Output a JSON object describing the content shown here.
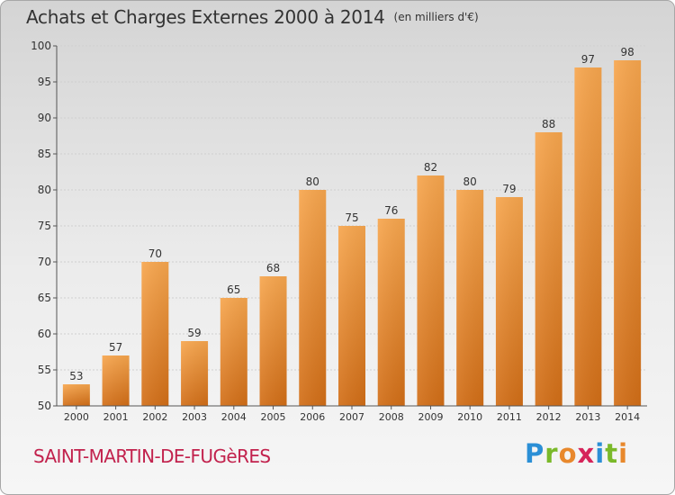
{
  "chart_data": {
    "type": "bar",
    "title": "Achats et Charges Externes 2000 à 2014",
    "unit": "(en milliers d'€)",
    "categories": [
      "2000",
      "2001",
      "2002",
      "2003",
      "2004",
      "2005",
      "2006",
      "2007",
      "2008",
      "2009",
      "2010",
      "2011",
      "2012",
      "2013",
      "2014"
    ],
    "values": [
      53,
      57,
      70,
      59,
      65,
      68,
      80,
      75,
      76,
      82,
      80,
      79,
      88,
      97,
      98
    ],
    "ylim": [
      50,
      100
    ],
    "yticks": [
      50,
      55,
      60,
      65,
      70,
      75,
      80,
      85,
      90,
      95,
      100
    ],
    "xlabel": "",
    "ylabel": "",
    "grid": true,
    "legend": "none",
    "colors": {
      "bar_light": "#f7a64e",
      "bar_dark": "#d26e17",
      "grid": "#cfcfcf",
      "axis": "#555555",
      "text": "#333333"
    }
  },
  "commune": "SAINT-MARTIN-DE-FUGèRES",
  "logo": {
    "letters": [
      "P",
      "r",
      "o",
      "x",
      "i",
      "t",
      "i"
    ],
    "colors": [
      "#2b8fd6",
      "#7ab929",
      "#e8882c",
      "#d6245a",
      "#2b8fd6",
      "#7ab929",
      "#e8882c"
    ]
  }
}
